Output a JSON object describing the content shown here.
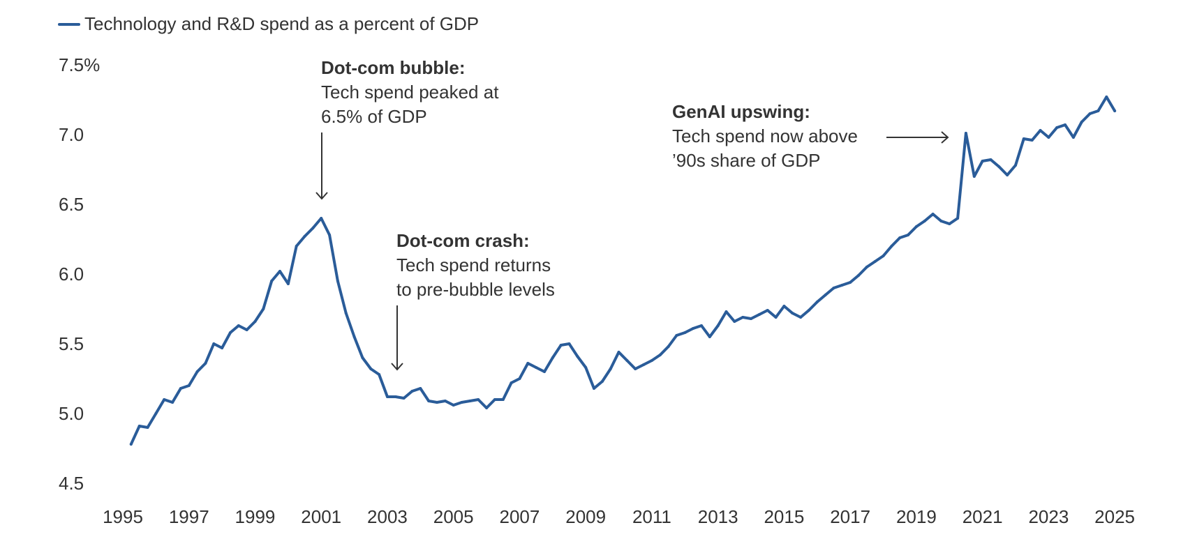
{
  "legend": {
    "label": "Technology and R&D spend as a percent of GDP",
    "color": "#2a5c99"
  },
  "annotations": {
    "bubble": {
      "title": "Dot-com bubble:",
      "lines": [
        "Tech spend peaked at",
        "6.5% of GDP"
      ]
    },
    "crash": {
      "title": "Dot-com crash:",
      "lines": [
        "Tech spend returns",
        "to pre-bubble levels"
      ]
    },
    "genai": {
      "title": "GenAI upswing:",
      "lines": [
        "Tech spend now above",
        "’90s share of GDP"
      ]
    }
  },
  "chart_data": {
    "type": "line",
    "title": "",
    "xlabel": "",
    "ylabel": "",
    "ylim": [
      4.5,
      7.5
    ],
    "xlim": [
      1995,
      2025
    ],
    "grid": false,
    "legend_position": "top-left",
    "y_ticks": [
      {
        "value": 7.5,
        "label": "7.5%"
      },
      {
        "value": 7.0,
        "label": "7.0"
      },
      {
        "value": 6.5,
        "label": "6.5"
      },
      {
        "value": 6.0,
        "label": "6.0"
      },
      {
        "value": 5.5,
        "label": "5.5"
      },
      {
        "value": 5.0,
        "label": "5.0"
      },
      {
        "value": 4.5,
        "label": "4.5"
      }
    ],
    "x_ticks": [
      {
        "value": 1995,
        "label": "1995"
      },
      {
        "value": 1997,
        "label": "1997"
      },
      {
        "value": 1999,
        "label": "1999"
      },
      {
        "value": 2001,
        "label": "2001"
      },
      {
        "value": 2003,
        "label": "2003"
      },
      {
        "value": 2005,
        "label": "2005"
      },
      {
        "value": 2007,
        "label": "2007"
      },
      {
        "value": 2009,
        "label": "2009"
      },
      {
        "value": 2011,
        "label": "2011"
      },
      {
        "value": 2013,
        "label": "2013"
      },
      {
        "value": 2015,
        "label": "2015"
      },
      {
        "value": 2017,
        "label": "2017"
      },
      {
        "value": 2019,
        "label": "2019"
      },
      {
        "value": 2021,
        "label": "2021"
      },
      {
        "value": 2023,
        "label": "2023"
      },
      {
        "value": 2025,
        "label": "2025"
      }
    ],
    "series": [
      {
        "name": "Technology and R&D spend as a percent of GDP",
        "color": "#2a5c99",
        "x_start": 1995.25,
        "x_step": 0.25,
        "values": [
          4.78,
          4.91,
          4.9,
          5.0,
          5.1,
          5.08,
          5.18,
          5.2,
          5.3,
          5.36,
          5.5,
          5.47,
          5.58,
          5.63,
          5.6,
          5.66,
          5.75,
          5.95,
          6.02,
          5.93,
          6.2,
          6.27,
          6.33,
          6.4,
          6.28,
          5.95,
          5.72,
          5.55,
          5.4,
          5.32,
          5.28,
          5.12,
          5.12,
          5.11,
          5.16,
          5.18,
          5.09,
          5.08,
          5.09,
          5.06,
          5.08,
          5.09,
          5.1,
          5.04,
          5.1,
          5.1,
          5.22,
          5.25,
          5.36,
          5.33,
          5.3,
          5.4,
          5.49,
          5.5,
          5.41,
          5.33,
          5.18,
          5.23,
          5.32,
          5.44,
          5.38,
          5.32,
          5.35,
          5.38,
          5.42,
          5.48,
          5.56,
          5.58,
          5.61,
          5.63,
          5.55,
          5.63,
          5.73,
          5.66,
          5.69,
          5.68,
          5.71,
          5.74,
          5.69,
          5.77,
          5.72,
          5.69,
          5.74,
          5.8,
          5.85,
          5.9,
          5.92,
          5.94,
          5.99,
          6.05,
          6.09,
          6.13,
          6.2,
          6.26,
          6.28,
          6.34,
          6.38,
          6.43,
          6.38,
          6.36,
          6.4,
          7.01,
          6.7,
          6.81,
          6.82,
          6.77,
          6.71,
          6.78,
          6.97,
          6.96,
          7.03,
          6.98,
          7.05,
          7.07,
          6.98,
          7.09,
          7.15,
          7.17,
          7.27,
          7.17
        ]
      }
    ],
    "annotations": [
      {
        "id": "bubble",
        "title": "Dot-com bubble:",
        "text": "Tech spend peaked at 6.5% of GDP",
        "arrow": "down",
        "target_x": 2001.0
      },
      {
        "id": "crash",
        "title": "Dot-com crash:",
        "text": "Tech spend returns to pre-bubble levels",
        "arrow": "down",
        "target_x": 2003.1
      },
      {
        "id": "genai",
        "title": "GenAI upswing:",
        "text": "Tech spend now above ’90s share of GDP",
        "arrow": "right",
        "target_x": 2020.25
      }
    ]
  }
}
